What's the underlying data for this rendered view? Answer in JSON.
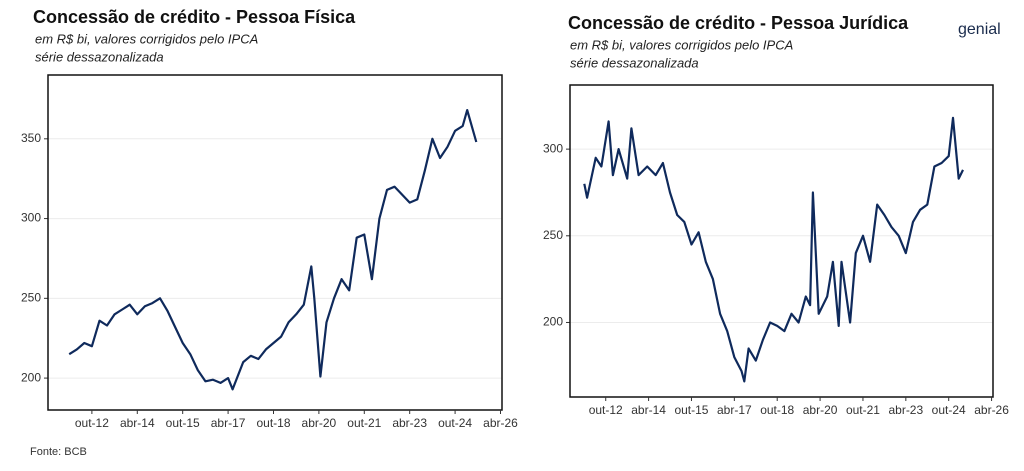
{
  "source": "Fonte: BCB",
  "logo": "genial",
  "chart_data": [
    {
      "type": "line",
      "title": "Concessão de crédito - Pessoa Física",
      "subtitle": [
        "em R$ bi, valores corrigidos pelo IPCA",
        "série dessazonalizada"
      ],
      "xlim": [
        2011.3,
        2026.3
      ],
      "ylim": [
        180,
        390
      ],
      "yticks": [
        200,
        250,
        300,
        350
      ],
      "grid": true,
      "xticks": [
        {
          "value": 2012.75,
          "label": "out-12"
        },
        {
          "value": 2014.25,
          "label": "abr-14"
        },
        {
          "value": 2015.75,
          "label": "out-15"
        },
        {
          "value": 2017.25,
          "label": "abr-17"
        },
        {
          "value": 2018.75,
          "label": "out-18"
        },
        {
          "value": 2020.25,
          "label": "abr-20"
        },
        {
          "value": 2021.75,
          "label": "out-21"
        },
        {
          "value": 2023.25,
          "label": "abr-23"
        },
        {
          "value": 2024.75,
          "label": "out-24"
        },
        {
          "value": 2026.25,
          "label": "abr-26"
        }
      ],
      "x": [
        2012.0,
        2012.25,
        2012.5,
        2012.75,
        2013.0,
        2013.25,
        2013.5,
        2013.75,
        2014.0,
        2014.25,
        2014.5,
        2014.75,
        2015.0,
        2015.25,
        2015.5,
        2015.75,
        2016.0,
        2016.25,
        2016.5,
        2016.75,
        2017.0,
        2017.25,
        2017.4,
        2017.75,
        2018.0,
        2018.25,
        2018.5,
        2018.75,
        2019.0,
        2019.25,
        2019.5,
        2019.75,
        2020.0,
        2020.1,
        2020.3,
        2020.5,
        2020.75,
        2021.0,
        2021.25,
        2021.5,
        2021.75,
        2022.0,
        2022.25,
        2022.5,
        2022.75,
        2023.0,
        2023.25,
        2023.5,
        2023.75,
        2024.0,
        2024.25,
        2024.5,
        2024.75,
        2025.0,
        2025.15,
        2025.45
      ],
      "series": [
        {
          "color": "#0f2a5c",
          "values": [
            215,
            218,
            222,
            220,
            236,
            233,
            240,
            243,
            246,
            240,
            245,
            247,
            250,
            242,
            232,
            222,
            215,
            205,
            198,
            199,
            197,
            200,
            193,
            210,
            214,
            212,
            218,
            222,
            226,
            235,
            240,
            246,
            270,
            250,
            201,
            235,
            250,
            262,
            255,
            288,
            290,
            262,
            300,
            318,
            320,
            315,
            310,
            312,
            330,
            350,
            338,
            345,
            355,
            358,
            368,
            348
          ]
        }
      ]
    },
    {
      "type": "line",
      "title": "Concessão de crédito - Pessoa Jurídica",
      "subtitle": [
        "em R$ bi, valores corrigidos pelo IPCA",
        "série dessazonalizada"
      ],
      "xlim": [
        2011.5,
        2026.3
      ],
      "ylim": [
        157,
        337
      ],
      "yticks": [
        200,
        250,
        300
      ],
      "grid": true,
      "xticks": [
        {
          "value": 2012.75,
          "label": "out-12"
        },
        {
          "value": 2014.25,
          "label": "abr-14"
        },
        {
          "value": 2015.75,
          "label": "out-15"
        },
        {
          "value": 2017.25,
          "label": "abr-17"
        },
        {
          "value": 2018.75,
          "label": "out-18"
        },
        {
          "value": 2020.25,
          "label": "abr-20"
        },
        {
          "value": 2021.75,
          "label": "out-21"
        },
        {
          "value": 2023.25,
          "label": "abr-23"
        },
        {
          "value": 2024.75,
          "label": "out-24"
        },
        {
          "value": 2026.25,
          "label": "abr-26"
        }
      ],
      "x": [
        2012.0,
        2012.1,
        2012.4,
        2012.6,
        2012.85,
        2013.0,
        2013.2,
        2013.5,
        2013.65,
        2013.9,
        2014.2,
        2014.5,
        2014.75,
        2015.0,
        2015.25,
        2015.5,
        2015.75,
        2016.0,
        2016.25,
        2016.5,
        2016.75,
        2017.0,
        2017.25,
        2017.5,
        2017.6,
        2017.75,
        2018.0,
        2018.25,
        2018.5,
        2018.75,
        2019.0,
        2019.25,
        2019.5,
        2019.75,
        2019.9,
        2020.0,
        2020.2,
        2020.5,
        2020.7,
        2020.9,
        2021.0,
        2021.3,
        2021.5,
        2021.75,
        2022.0,
        2022.25,
        2022.5,
        2022.75,
        2023.0,
        2023.25,
        2023.5,
        2023.75,
        2024.0,
        2024.25,
        2024.5,
        2024.75,
        2024.9,
        2025.1,
        2025.25
      ],
      "series": [
        {
          "color": "#0f2a5c",
          "values": [
            280,
            272,
            295,
            290,
            316,
            285,
            300,
            283,
            312,
            285,
            290,
            285,
            292,
            275,
            262,
            258,
            245,
            252,
            235,
            225,
            205,
            195,
            180,
            172,
            166,
            185,
            178,
            190,
            200,
            198,
            195,
            205,
            200,
            215,
            210,
            275,
            205,
            215,
            235,
            198,
            235,
            200,
            240,
            250,
            235,
            268,
            262,
            255,
            250,
            240,
            258,
            265,
            268,
            290,
            292,
            296,
            318,
            283,
            288
          ]
        }
      ]
    }
  ]
}
